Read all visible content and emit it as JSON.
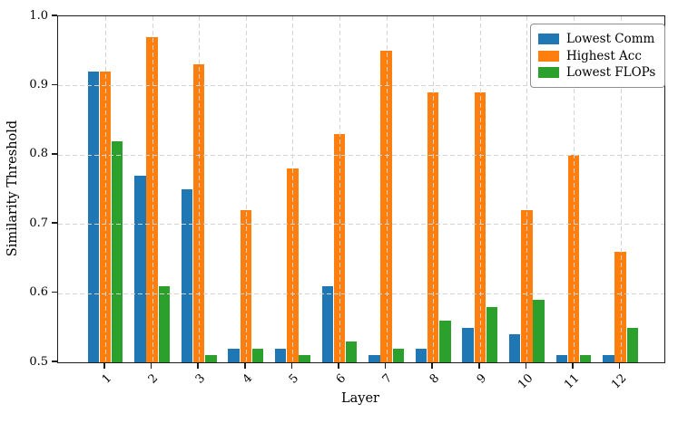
{
  "chart_data": {
    "type": "bar",
    "title": "",
    "xlabel": "Layer",
    "ylabel": "Similarity Threshold",
    "categories": [
      "1",
      "2",
      "3",
      "4",
      "5",
      "6",
      "7",
      "8",
      "9",
      "10",
      "11",
      "12"
    ],
    "series": [
      {
        "name": "Lowest Comm",
        "color": "#1f77b4",
        "values": [
          0.92,
          0.77,
          0.75,
          0.52,
          0.52,
          0.61,
          0.51,
          0.52,
          0.55,
          0.54,
          0.51,
          0.51
        ]
      },
      {
        "name": "Highest Acc",
        "color": "#ff7f0e",
        "values": [
          0.92,
          0.97,
          0.93,
          0.72,
          0.78,
          0.83,
          0.95,
          0.89,
          0.89,
          0.72,
          0.8,
          0.66
        ]
      },
      {
        "name": "Lowest FLOPs",
        "color": "#2ca02c",
        "values": [
          0.82,
          0.61,
          0.51,
          0.52,
          0.51,
          0.53,
          0.52,
          0.56,
          0.58,
          0.59,
          0.51,
          0.55
        ]
      }
    ],
    "ylim": [
      0.5,
      1.0
    ],
    "yticks": [
      "0.5",
      "0.6",
      "0.7",
      "0.8",
      "0.9",
      "1.0"
    ],
    "grid": true,
    "grid_style": "dashed",
    "legend_position": "upper right",
    "colors": {
      "grid": "#d4d4d4",
      "axis": "#1c1c1c",
      "background": "#ffffff"
    }
  }
}
